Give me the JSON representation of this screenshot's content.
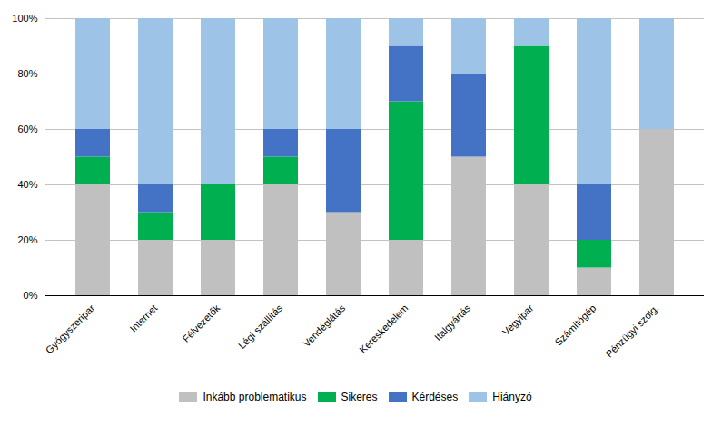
{
  "chart_data": {
    "type": "bar",
    "stacked": true,
    "categories": [
      "Gyógyszeripar",
      "Internet",
      "Félvezetők",
      "Légi szállítás",
      "Vendéglátás",
      "Kereskedelem",
      "Italgyártás",
      "Vegyipar",
      "Számítógép",
      "Pénzügyi szolg."
    ],
    "series": [
      {
        "name": "Inkább problematikus",
        "color": "#c0c0c0",
        "values": [
          40,
          20,
          20,
          40,
          30,
          20,
          50,
          40,
          10,
          60
        ]
      },
      {
        "name": "Sikeres",
        "color": "#00b050",
        "values": [
          10,
          10,
          20,
          10,
          0,
          50,
          0,
          50,
          10,
          0
        ]
      },
      {
        "name": "Kérdéses",
        "color": "#4472c4",
        "values": [
          10,
          10,
          0,
          10,
          30,
          20,
          30,
          0,
          20,
          0
        ]
      },
      {
        "name": "Hiányzó",
        "color": "#9dc3e6",
        "values": [
          40,
          60,
          60,
          40,
          40,
          10,
          20,
          10,
          60,
          40
        ]
      }
    ],
    "ylim": [
      0,
      100
    ],
    "yticks": [
      {
        "value": 0,
        "label": "0%"
      },
      {
        "value": 20,
        "label": "20%"
      },
      {
        "value": 40,
        "label": "40%"
      },
      {
        "value": 60,
        "label": "60%"
      },
      {
        "value": 80,
        "label": "80%"
      },
      {
        "value": 100,
        "label": "100%"
      }
    ],
    "grid": true,
    "legend": "bottom"
  }
}
